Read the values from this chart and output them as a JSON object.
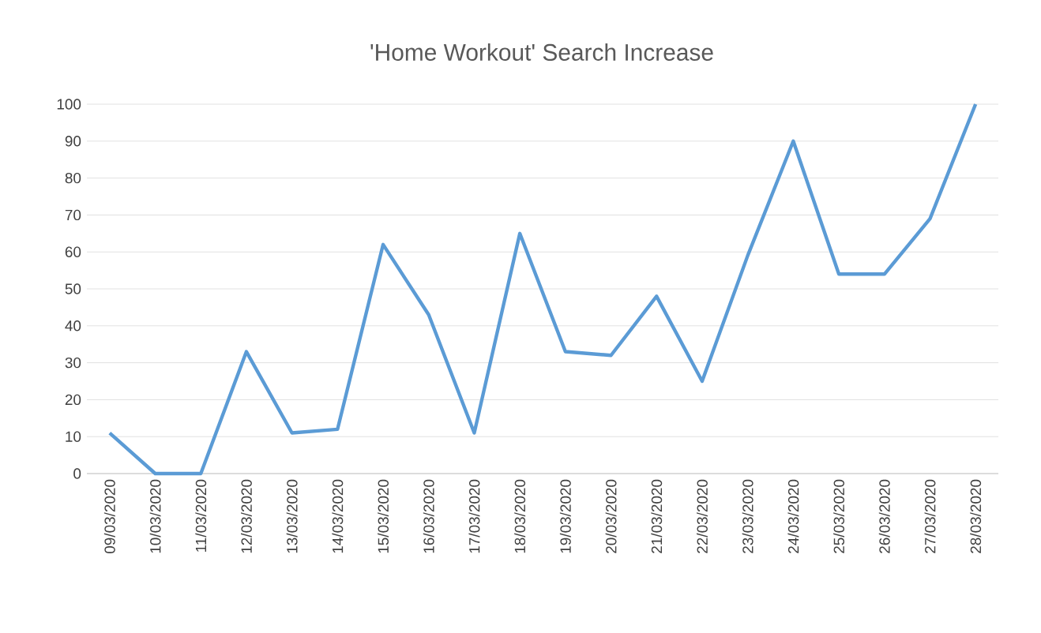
{
  "chart_data": {
    "type": "line",
    "title": "'Home Workout' Search Increase",
    "categories": [
      "09/03/2020",
      "10/03/2020",
      "11/03/2020",
      "12/03/2020",
      "13/03/2020",
      "14/03/2020",
      "15/03/2020",
      "16/03/2020",
      "17/03/2020",
      "18/03/2020",
      "19/03/2020",
      "20/03/2020",
      "21/03/2020",
      "22/03/2020",
      "23/03/2020",
      "24/03/2020",
      "25/03/2020",
      "26/03/2020",
      "27/03/2020",
      "28/03/2020"
    ],
    "values": [
      11,
      0,
      0,
      33,
      11,
      12,
      62,
      43,
      11,
      65,
      33,
      32,
      48,
      25,
      59,
      90,
      54,
      54,
      69,
      100
    ],
    "color": "#5b9bd5",
    "ylim": [
      0,
      100
    ],
    "yticks": [
      0,
      10,
      20,
      30,
      40,
      50,
      60,
      70,
      80,
      90,
      100
    ],
    "grid": "y",
    "marker": "none",
    "line_style": "solid"
  }
}
